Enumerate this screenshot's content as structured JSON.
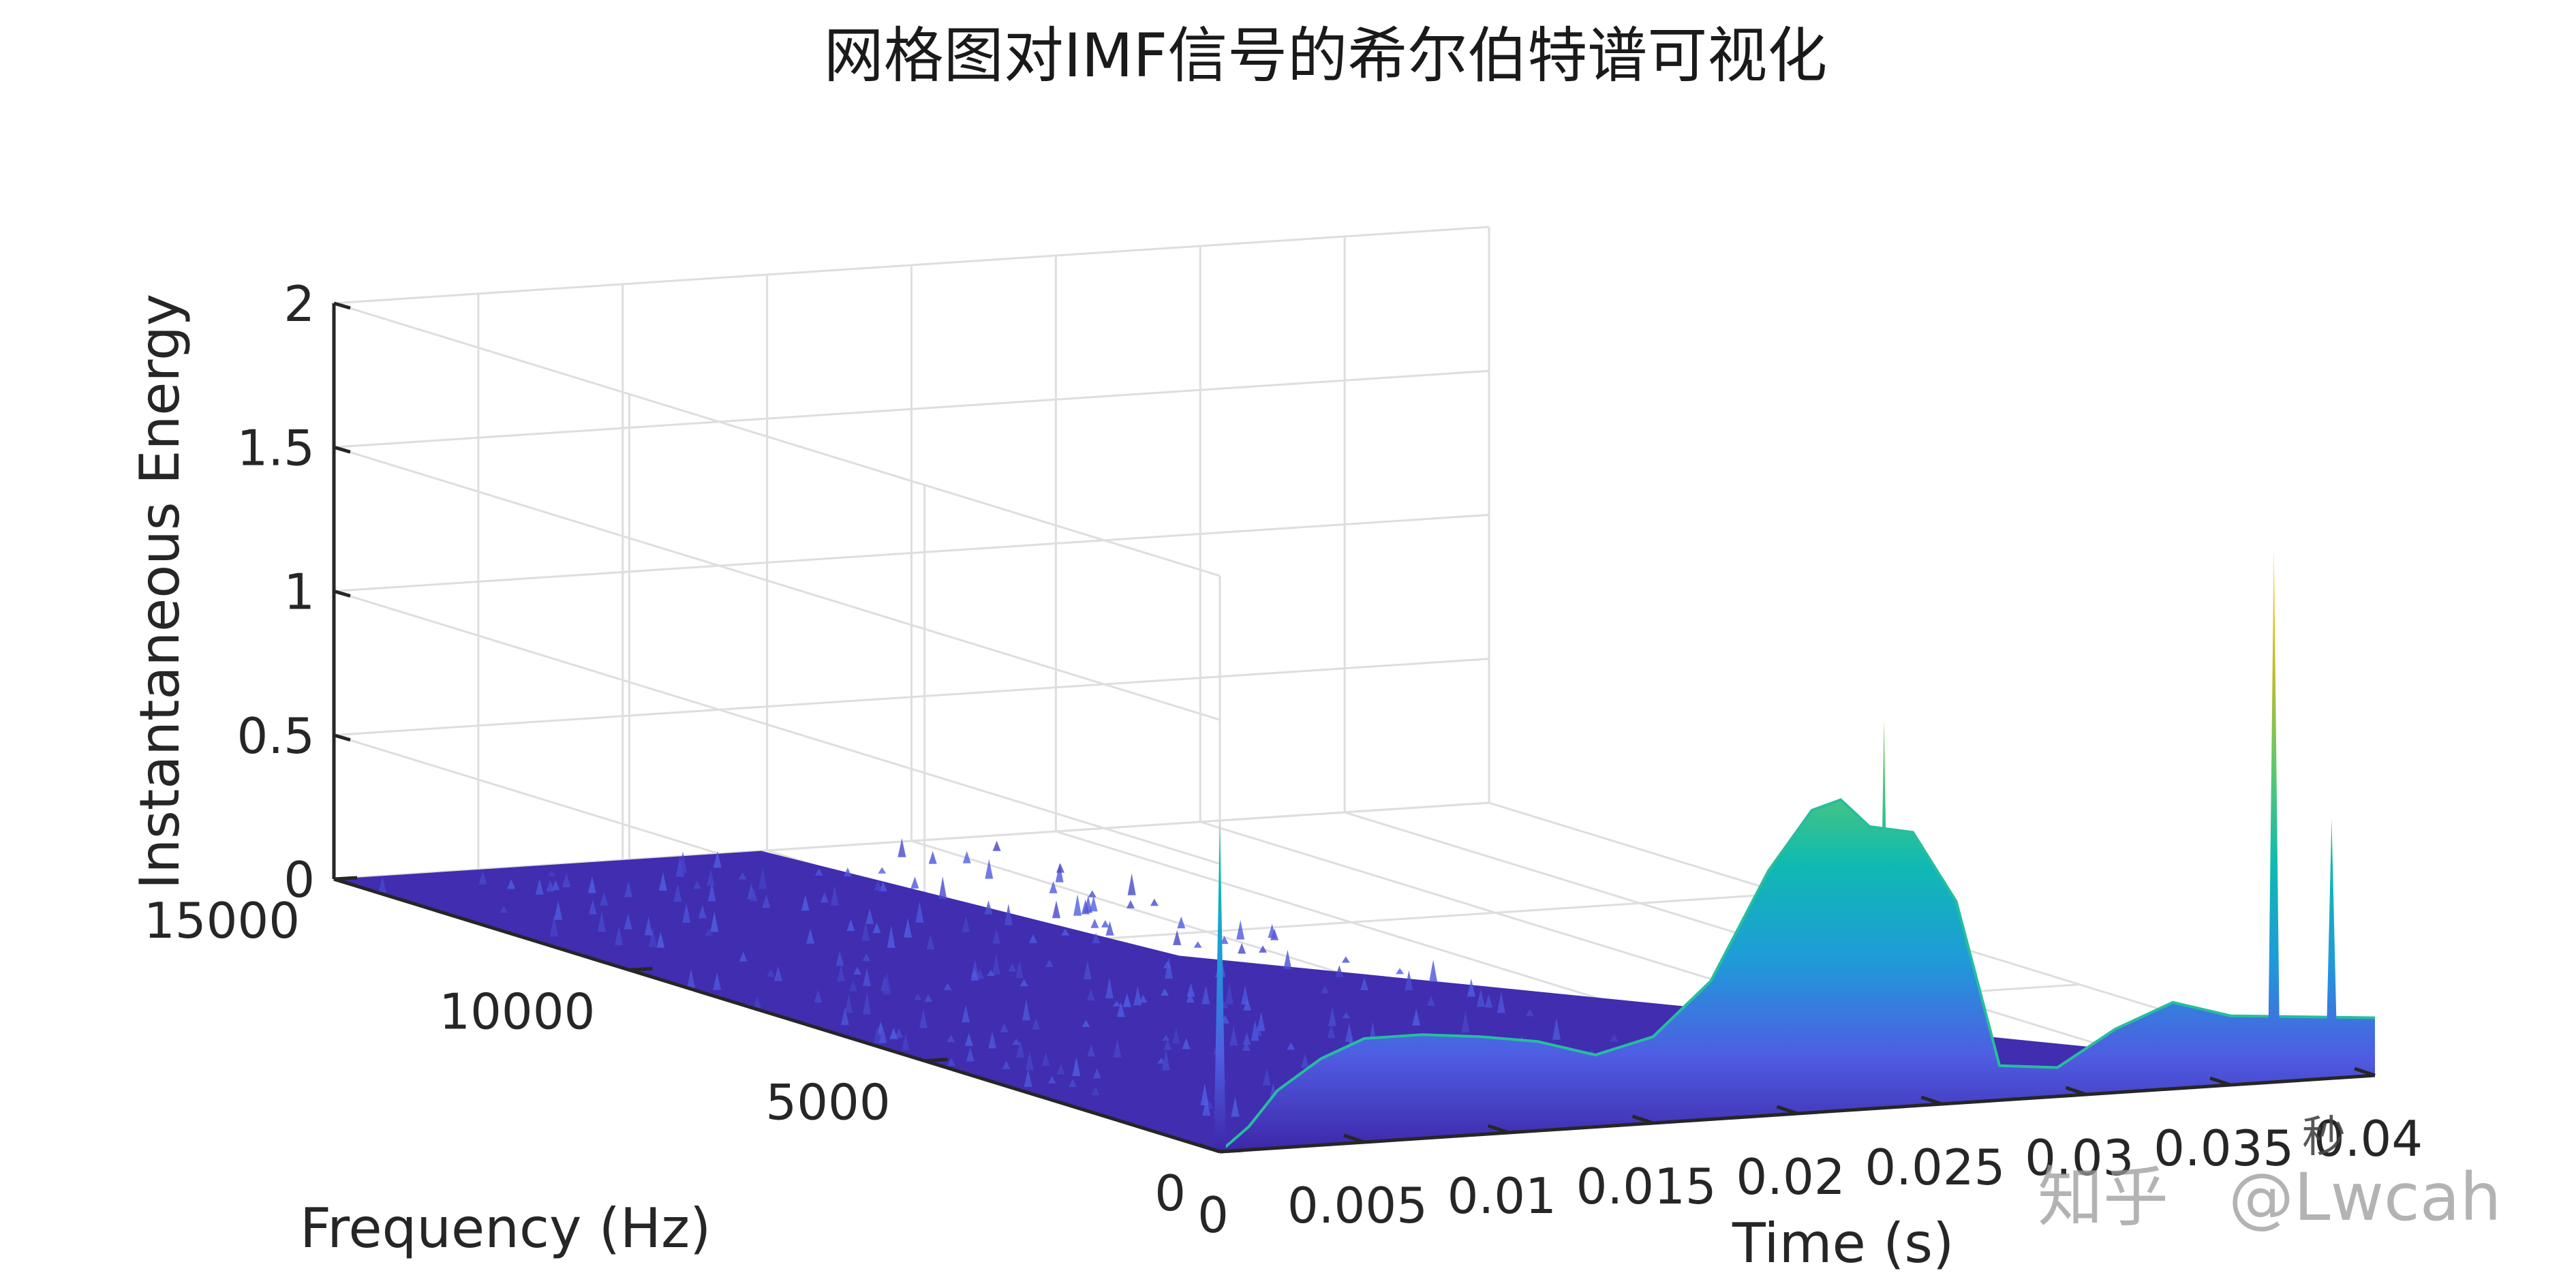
{
  "chart_data": {
    "type": "surface",
    "title": "网格图对IMF信号的希尔伯特谱可视化",
    "xlabel": "Time (s)",
    "ylabel": "Frequency (Hz)",
    "zlabel": "Instantaneous Energy",
    "xlim": [
      0,
      0.04
    ],
    "ylim": [
      0,
      15000
    ],
    "zlim": [
      0,
      2
    ],
    "x_ticks": [
      "0",
      "0.005",
      "0.01",
      "0.015",
      "0.02",
      "0.025",
      "0.03",
      "0.035",
      "0.04"
    ],
    "y_ticks": [
      "0",
      "5000",
      "10000",
      "15000"
    ],
    "z_ticks": [
      "0",
      "0.5",
      "1",
      "1.5",
      "2"
    ],
    "colormap": "parula",
    "colormap_stops": [
      "#3e26a8",
      "#4f5de3",
      "#1f9bd9",
      "#0fbab1",
      "#5cc86d",
      "#c2bc2a",
      "#f7cf1f"
    ],
    "ridge_frequency_hz": 0,
    "ridge_profile": [
      {
        "t": 0.0,
        "e": 0.0
      },
      {
        "t": 0.001,
        "e": 0.08
      },
      {
        "t": 0.002,
        "e": 0.2
      },
      {
        "t": 0.0035,
        "e": 0.3
      },
      {
        "t": 0.005,
        "e": 0.36
      },
      {
        "t": 0.007,
        "e": 0.36
      },
      {
        "t": 0.009,
        "e": 0.34
      },
      {
        "t": 0.011,
        "e": 0.31
      },
      {
        "t": 0.013,
        "e": 0.25
      },
      {
        "t": 0.015,
        "e": 0.3
      },
      {
        "t": 0.017,
        "e": 0.48
      },
      {
        "t": 0.019,
        "e": 0.85
      },
      {
        "t": 0.0205,
        "e": 1.05
      },
      {
        "t": 0.0215,
        "e": 1.08
      },
      {
        "t": 0.0225,
        "e": 0.98
      },
      {
        "t": 0.024,
        "e": 0.95
      },
      {
        "t": 0.0255,
        "e": 0.7
      },
      {
        "t": 0.027,
        "e": 0.12
      },
      {
        "t": 0.029,
        "e": 0.1
      },
      {
        "t": 0.031,
        "e": 0.22
      },
      {
        "t": 0.033,
        "e": 0.3
      },
      {
        "t": 0.035,
        "e": 0.24
      },
      {
        "t": 0.04,
        "e": 0.2
      }
    ],
    "spikes": [
      {
        "t": 0.0,
        "f": 0,
        "e": 1.15
      },
      {
        "t": 0.023,
        "f": 0,
        "e": 1.35
      },
      {
        "t": 0.0365,
        "f": 0,
        "e": 1.85
      },
      {
        "t": 0.0385,
        "f": 0,
        "e": 0.9
      }
    ],
    "grid": true,
    "box": false,
    "view": "3d-oblique"
  },
  "watermark": {
    "brand": "知乎",
    "handle": "@Lwcah",
    "corner_label": "秒"
  }
}
